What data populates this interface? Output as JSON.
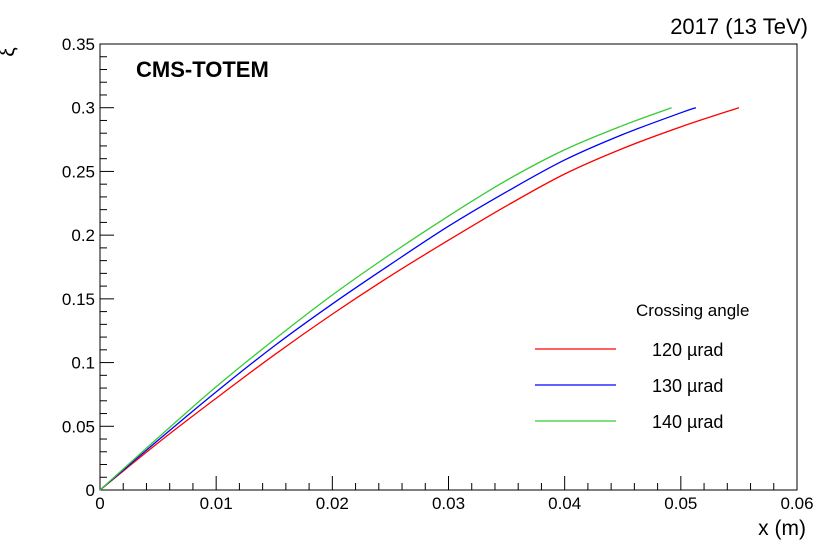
{
  "top_right_label": "2017 (13 TeV)",
  "experiment_label": "CMS-TOTEM",
  "chart_data": {
    "type": "line",
    "xlabel": "x (m)",
    "ylabel": "ξ",
    "xlim": [
      0,
      0.06
    ],
    "ylim": [
      0,
      0.35
    ],
    "x_ticks": [
      "0",
      "0.01",
      "0.02",
      "0.03",
      "0.04",
      "0.05",
      "0.06"
    ],
    "y_ticks": [
      "0",
      "0.05",
      "0.1",
      "0.15",
      "0.2",
      "0.25",
      "0.3",
      "0.35"
    ],
    "grid": false,
    "legend_title": "Crossing angle",
    "legend_position": "bottom-right",
    "series": [
      {
        "name": "120 µrad",
        "color": "#ff0000",
        "points": [
          [
            0,
            0
          ],
          [
            0.005,
            0.037
          ],
          [
            0.01,
            0.072
          ],
          [
            0.015,
            0.106
          ],
          [
            0.02,
            0.138
          ],
          [
            0.025,
            0.168
          ],
          [
            0.03,
            0.196
          ],
          [
            0.035,
            0.223
          ],
          [
            0.04,
            0.248
          ],
          [
            0.045,
            0.268
          ],
          [
            0.05,
            0.285
          ],
          [
            0.055,
            0.3
          ]
        ]
      },
      {
        "name": "130 µrad",
        "color": "#0000ff",
        "points": [
          [
            0,
            0
          ],
          [
            0.005,
            0.039
          ],
          [
            0.01,
            0.077
          ],
          [
            0.015,
            0.113
          ],
          [
            0.02,
            0.146
          ],
          [
            0.025,
            0.177
          ],
          [
            0.03,
            0.207
          ],
          [
            0.035,
            0.234
          ],
          [
            0.04,
            0.259
          ],
          [
            0.045,
            0.279
          ],
          [
            0.05,
            0.296
          ],
          [
            0.0513,
            0.3
          ]
        ]
      },
      {
        "name": "140 µrad",
        "color": "#33cc33",
        "points": [
          [
            0,
            0
          ],
          [
            0.005,
            0.041
          ],
          [
            0.01,
            0.081
          ],
          [
            0.015,
            0.118
          ],
          [
            0.02,
            0.153
          ],
          [
            0.025,
            0.185
          ],
          [
            0.03,
            0.215
          ],
          [
            0.035,
            0.243
          ],
          [
            0.04,
            0.267
          ],
          [
            0.045,
            0.286
          ],
          [
            0.0492,
            0.3
          ]
        ]
      }
    ]
  }
}
